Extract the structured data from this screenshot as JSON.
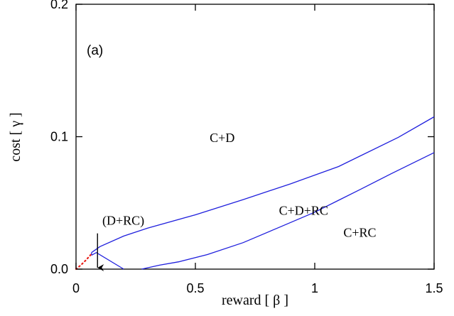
{
  "chart_data": {
    "type": "line",
    "panel_label": "(a)",
    "xlabel": "reward  [ β ]",
    "ylabel": "cost  [ γ ]",
    "xlim": [
      0,
      1.5
    ],
    "ylim": [
      0,
      0.2
    ],
    "x_ticks": [
      {
        "value": 0,
        "label": "0"
      },
      {
        "value": 0.5,
        "label": "0.5"
      },
      {
        "value": 1,
        "label": "1"
      },
      {
        "value": 1.5,
        "label": "1.5"
      }
    ],
    "y_ticks": [
      {
        "value": 0,
        "label": "0.0"
      },
      {
        "value": 0.1,
        "label": "0.1"
      },
      {
        "value": 0.2,
        "label": "0.2"
      }
    ],
    "grid": false,
    "series": [
      {
        "color": "#1f1fdd",
        "style": "solid",
        "points": [
          [
            0.065,
            0.0125
          ],
          [
            0.1,
            0.017
          ],
          [
            0.2,
            0.025
          ],
          [
            0.3,
            0.031
          ],
          [
            0.5,
            0.041
          ],
          [
            0.7,
            0.0525
          ],
          [
            0.9,
            0.0645
          ],
          [
            1.1,
            0.0775
          ],
          [
            1.35,
            0.0995
          ],
          [
            1.5,
            0.115
          ]
        ]
      },
      {
        "color": "#1f1fdd",
        "style": "solid",
        "points": [
          [
            0.275,
            0.0
          ],
          [
            0.35,
            0.003
          ],
          [
            0.43,
            0.0055
          ],
          [
            0.55,
            0.011
          ],
          [
            0.7,
            0.02
          ],
          [
            0.85,
            0.0315
          ],
          [
            1.0,
            0.043
          ],
          [
            1.1,
            0.052
          ],
          [
            1.2,
            0.061
          ],
          [
            1.32,
            0.072
          ],
          [
            1.5,
            0.088
          ]
        ]
      },
      {
        "color": "#1f1fdd",
        "style": "solid",
        "points": [
          [
            0.065,
            0.0105
          ],
          [
            0.085,
            0.0125
          ],
          [
            0.2,
            0.0
          ]
        ]
      },
      {
        "color": "#1f1fdd",
        "style": "solid",
        "points": [
          [
            0.065,
            0.0105
          ],
          [
            0.065,
            0.0125
          ]
        ]
      },
      {
        "color": "#e8201a",
        "style": "dotted",
        "points": [
          [
            0.0,
            0.0
          ],
          [
            0.02,
            0.003
          ],
          [
            0.04,
            0.0065
          ],
          [
            0.065,
            0.0115
          ]
        ]
      }
    ],
    "annotations": [
      {
        "text": "C+D",
        "x": 0.56,
        "y": 0.096
      },
      {
        "text": "C+D+RC",
        "x": 0.85,
        "y": 0.041
      },
      {
        "text": "C+RC",
        "x": 1.12,
        "y": 0.0245
      },
      {
        "text": "(D+RC)",
        "x": 0.11,
        "y": 0.0335
      }
    ],
    "arrow": {
      "from": [
        0.09,
        0.027
      ],
      "to": [
        0.09,
        0.0
      ]
    }
  }
}
